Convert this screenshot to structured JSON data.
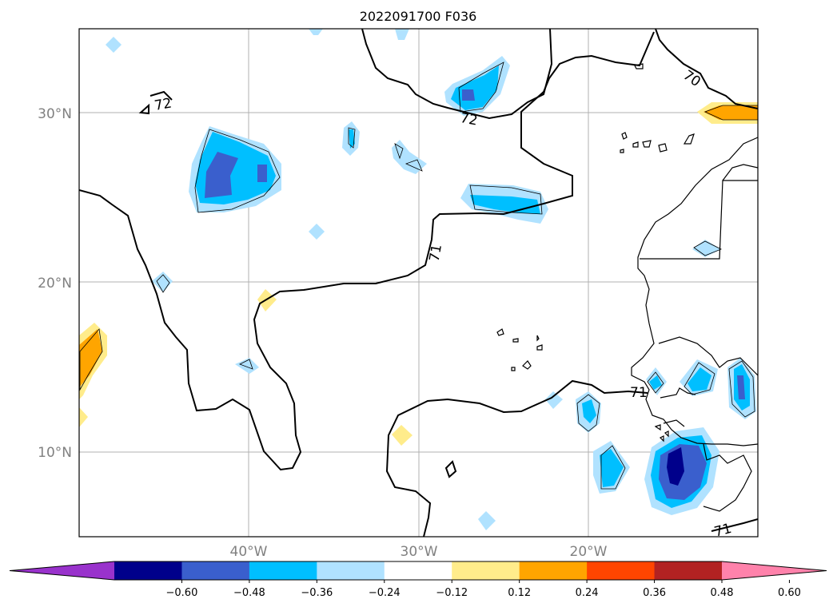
{
  "title": "2022091700 F036",
  "latitude_labels": [
    "30°N",
    "20°N",
    "10°N"
  ],
  "longitude_labels": [
    "40°W",
    "30°W",
    "20°W"
  ],
  "contour_labels": [
    "72",
    "72",
    "71",
    "70",
    "71",
    "71"
  ],
  "colorbar": {
    "tick_labels": [
      "−0.60",
      "−0.48",
      "−0.36",
      "−0.24",
      "−0.12",
      "0.12",
      "0.24",
      "0.36",
      "0.48",
      "0.60"
    ],
    "colors": [
      "#9932cc",
      "#00008b",
      "#3a5fcd",
      "#00bfff",
      "#b0e2ff",
      "#ffffff",
      "#ffec8b",
      "#ffa500",
      "#ff4500",
      "#b22222",
      "#ff82ab"
    ]
  },
  "colors": {
    "grid": "#b0b0b0",
    "coast": "#000000",
    "frame": "#000000"
  }
}
